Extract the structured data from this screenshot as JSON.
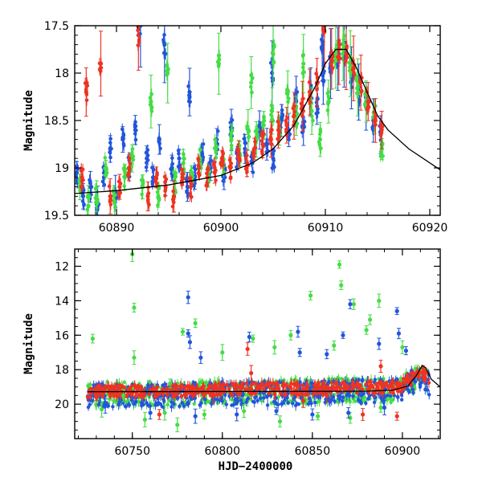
{
  "chart_data": [
    {
      "type": "scatter",
      "panel": "top",
      "ylabel": "Magnitude",
      "xlabel": "",
      "xlim": [
        60886,
        60921
      ],
      "ylim": [
        19.5,
        17.5
      ],
      "y_inverted": true,
      "x_ticks": [
        60890,
        60900,
        60910,
        60920
      ],
      "y_ticks": [
        17.5,
        18,
        18.5,
        19,
        19.5
      ],
      "grid": false,
      "series": [
        {
          "color": "#2255dd",
          "points": [
            [
              60886.2,
              19.05
            ],
            [
              60886.8,
              19.3
            ],
            [
              60887.5,
              19.2
            ],
            [
              60888.2,
              19.4
            ],
            [
              60888.8,
              19.1
            ],
            [
              60889.4,
              18.8
            ],
            [
              60889.9,
              19.25
            ],
            [
              60890.6,
              18.7
            ],
            [
              60891.2,
              19.0
            ],
            [
              60891.8,
              18.6
            ],
            [
              60892.3,
              17.5
            ],
            [
              60892.9,
              18.9
            ],
            [
              60893.5,
              19.1
            ],
            [
              60894.1,
              18.7
            ],
            [
              60894.6,
              17.7
            ],
            [
              60895.3,
              19.0
            ],
            [
              60896.0,
              18.9
            ],
            [
              60896.8,
              19.2
            ],
            [
              60897.5,
              19.1
            ],
            [
              60898.2,
              18.85
            ],
            [
              60899.0,
              19.0
            ],
            [
              60899.6,
              18.7
            ],
            [
              60900.3,
              19.1
            ],
            [
              60901.0,
              18.6
            ],
            [
              60901.6,
              18.9
            ],
            [
              60902.3,
              18.8
            ],
            [
              60903.0,
              18.95
            ],
            [
              60903.7,
              18.6
            ],
            [
              60904.4,
              18.75
            ],
            [
              60905.0,
              18.9
            ],
            [
              60905.8,
              18.5
            ],
            [
              60906.5,
              18.6
            ],
            [
              60907.2,
              18.3
            ],
            [
              60907.9,
              18.55
            ],
            [
              60908.6,
              18.2
            ],
            [
              60909.2,
              18.35
            ],
            [
              60909.8,
              18.0
            ],
            [
              60910.5,
              17.9
            ],
            [
              60911.2,
              17.85
            ],
            [
              60911.8,
              17.75
            ],
            [
              60912.5,
              18.05
            ],
            [
              60913.2,
              18.2
            ],
            [
              60913.9,
              18.35
            ],
            [
              60914.6,
              18.5
            ],
            [
              60915.3,
              18.65
            ],
            [
              60897.0,
              18.2
            ],
            [
              60904.9,
              18.0
            ],
            [
              60909.7,
              17.75
            ]
          ]
        },
        {
          "color": "#44dd44",
          "points": [
            [
              60886.5,
              19.2
            ],
            [
              60887.3,
              19.4
            ],
            [
              60888.1,
              19.3
            ],
            [
              60889.0,
              19.0
            ],
            [
              60889.8,
              19.35
            ],
            [
              60890.8,
              19.1
            ],
            [
              60891.5,
              18.9
            ],
            [
              60892.5,
              19.2
            ],
            [
              60893.3,
              18.3
            ],
            [
              60894.0,
              19.3
            ],
            [
              60894.9,
              18.0
            ],
            [
              60895.6,
              19.15
            ],
            [
              60896.4,
              18.95
            ],
            [
              60897.2,
              19.05
            ],
            [
              60898.0,
              18.9
            ],
            [
              60898.8,
              19.1
            ],
            [
              60899.5,
              18.8
            ],
            [
              60900.2,
              18.95
            ],
            [
              60901.0,
              18.7
            ],
            [
              60901.8,
              18.85
            ],
            [
              60902.6,
              18.6
            ],
            [
              60903.4,
              18.7
            ],
            [
              60904.1,
              18.55
            ],
            [
              60904.9,
              18.4
            ],
            [
              60905.6,
              18.6
            ],
            [
              60906.4,
              18.2
            ],
            [
              60907.2,
              18.45
            ],
            [
              60907.9,
              17.9
            ],
            [
              60908.7,
              18.4
            ],
            [
              60909.5,
              18.7
            ],
            [
              60910.3,
              18.3
            ],
            [
              60911.0,
              17.8
            ],
            [
              60911.7,
              17.7
            ],
            [
              60912.4,
              17.9
            ],
            [
              60913.1,
              18.15
            ],
            [
              60913.9,
              18.3
            ],
            [
              60914.7,
              18.45
            ],
            [
              60915.4,
              18.8
            ],
            [
              60905.0,
              17.8
            ],
            [
              60902.9,
              18.1
            ],
            [
              60899.8,
              17.9
            ]
          ]
        },
        {
          "color": "#ee3322",
          "points": [
            [
              60886.7,
              19.1
            ],
            [
              60887.1,
              18.2
            ],
            [
              60888.5,
              17.9
            ],
            [
              60889.4,
              19.3
            ],
            [
              60890.3,
              19.2
            ],
            [
              60891.2,
              19.0
            ],
            [
              60892.1,
              17.6
            ],
            [
              60893.0,
              19.3
            ],
            [
              60893.8,
              19.1
            ],
            [
              60894.7,
              19.2
            ],
            [
              60895.5,
              19.3
            ],
            [
              60896.3,
              19.1
            ],
            [
              60897.1,
              19.2
            ],
            [
              60897.9,
              19.0
            ],
            [
              60898.7,
              19.1
            ],
            [
              60899.4,
              19.05
            ],
            [
              60900.1,
              18.9
            ],
            [
              60900.9,
              19.0
            ],
            [
              60901.7,
              18.85
            ],
            [
              60902.5,
              18.95
            ],
            [
              60903.2,
              18.8
            ],
            [
              60904.0,
              18.75
            ],
            [
              60904.8,
              18.7
            ],
            [
              60905.5,
              18.6
            ],
            [
              60906.3,
              18.55
            ],
            [
              60907.0,
              18.45
            ],
            [
              60907.8,
              18.35
            ],
            [
              60908.5,
              18.2
            ],
            [
              60909.2,
              18.1
            ],
            [
              60909.9,
              17.55
            ],
            [
              60910.6,
              17.85
            ],
            [
              60911.3,
              17.75
            ],
            [
              60912.0,
              17.8
            ],
            [
              60912.7,
              17.95
            ],
            [
              60913.4,
              18.1
            ],
            [
              60914.1,
              18.3
            ],
            [
              60914.8,
              18.5
            ],
            [
              60915.4,
              18.6
            ]
          ]
        }
      ],
      "model_curve": [
        [
          60886,
          19.27
        ],
        [
          60890,
          19.24
        ],
        [
          60895,
          19.18
        ],
        [
          60900,
          19.08
        ],
        [
          60903,
          18.95
        ],
        [
          60905,
          18.8
        ],
        [
          60907,
          18.55
        ],
        [
          60909,
          18.15
        ],
        [
          60910,
          17.9
        ],
        [
          60911,
          17.75
        ],
        [
          60912,
          17.75
        ],
        [
          60913,
          17.95
        ],
        [
          60914,
          18.2
        ],
        [
          60915,
          18.45
        ],
        [
          60916,
          18.6
        ],
        [
          60918,
          18.8
        ],
        [
          60921,
          19.02
        ]
      ]
    },
    {
      "type": "scatter",
      "panel": "bottom",
      "ylabel": "Magnitude",
      "xlabel": "HJD−2400000",
      "xlim": [
        60718,
        60921
      ],
      "ylim": [
        22,
        11
      ],
      "y_inverted": true,
      "x_ticks": [
        60750,
        60800,
        60850,
        60900
      ],
      "y_ticks": [
        12,
        14,
        16,
        18,
        20
      ],
      "grid": false,
      "series": [
        {
          "color": "#44dd44",
          "points": [
            [
              60728,
              16.2
            ],
            [
              60745,
              19.5
            ],
            [
              60750,
              11.3
            ],
            [
              60751,
              14.4
            ],
            [
              60751,
              17.3
            ],
            [
              60771,
              18.8
            ],
            [
              60778,
              15.8
            ],
            [
              60785,
              15.3
            ],
            [
              60800,
              17.0
            ],
            [
              60817,
              16.2
            ],
            [
              60829,
              16.7
            ],
            [
              60838,
              16.0
            ],
            [
              60849,
              13.7
            ],
            [
              60862,
              16.6
            ],
            [
              60865,
              11.9
            ],
            [
              60866,
              13.1
            ],
            [
              60873,
              14.2
            ],
            [
              60880,
              15.7
            ],
            [
              60882,
              15.1
            ],
            [
              60887,
              14.0
            ],
            [
              60900,
              16.7
            ],
            [
              60733,
              20.3
            ],
            [
              60757,
              20.9
            ],
            [
              60768,
              20.5
            ],
            [
              60775,
              21.2
            ],
            [
              60790,
              20.6
            ],
            [
              60812,
              20.4
            ],
            [
              60832,
              21.0
            ],
            [
              60853,
              20.7
            ],
            [
              60871,
              20.8
            ],
            [
              60888,
              20.2
            ]
          ]
        },
        {
          "color": "#2255dd",
          "points": [
            [
              60781,
              13.8
            ],
            [
              60781,
              15.9
            ],
            [
              60782,
              16.4
            ],
            [
              60788,
              17.3
            ],
            [
              60815,
              16.1
            ],
            [
              60842,
              15.8
            ],
            [
              60843,
              17.0
            ],
            [
              60858,
              17.1
            ],
            [
              60867,
              16.0
            ],
            [
              60871,
              14.2
            ],
            [
              60887,
              16.5
            ],
            [
              60897,
              14.6
            ],
            [
              60898,
              15.9
            ],
            [
              60902,
              16.9
            ],
            [
              60735,
              20.1
            ],
            [
              60760,
              20.5
            ],
            [
              60785,
              20.7
            ],
            [
              60808,
              20.6
            ],
            [
              60830,
              20.4
            ],
            [
              60850,
              20.6
            ],
            [
              60870,
              20.5
            ],
            [
              60890,
              20.2
            ]
          ]
        },
        {
          "color": "#ee3322",
          "points": [
            [
              60730,
              19.6
            ],
            [
              60765,
              20.6
            ],
            [
              60795,
              19.5
            ],
            [
              60814,
              16.8
            ],
            [
              60816,
              18.2
            ],
            [
              60845,
              19.8
            ],
            [
              60858,
              19.5
            ],
            [
              60878,
              20.6
            ],
            [
              60888,
              17.8
            ],
            [
              60897,
              20.7
            ],
            [
              60912,
              18.4
            ]
          ]
        }
      ],
      "band": {
        "x": [
          60725,
          60735,
          60750,
          60765,
          60780,
          60800,
          60820,
          60840,
          60860,
          60880,
          60895,
          60900,
          60905,
          60910,
          60915
        ],
        "y": [
          19.3,
          19.25,
          19.2,
          19.25,
          19.2,
          19.15,
          19.1,
          19.15,
          19.05,
          19.0,
          19.05,
          18.9,
          18.5,
          18.1,
          18.6
        ]
      },
      "model_curve": [
        [
          60725,
          19.28
        ],
        [
          60800,
          19.27
        ],
        [
          60880,
          19.25
        ],
        [
          60895,
          19.18
        ],
        [
          60903,
          18.95
        ],
        [
          60908,
          18.3
        ],
        [
          60911,
          17.75
        ],
        [
          60913,
          17.9
        ],
        [
          60916,
          18.55
        ],
        [
          60921,
          19.0
        ]
      ]
    }
  ]
}
